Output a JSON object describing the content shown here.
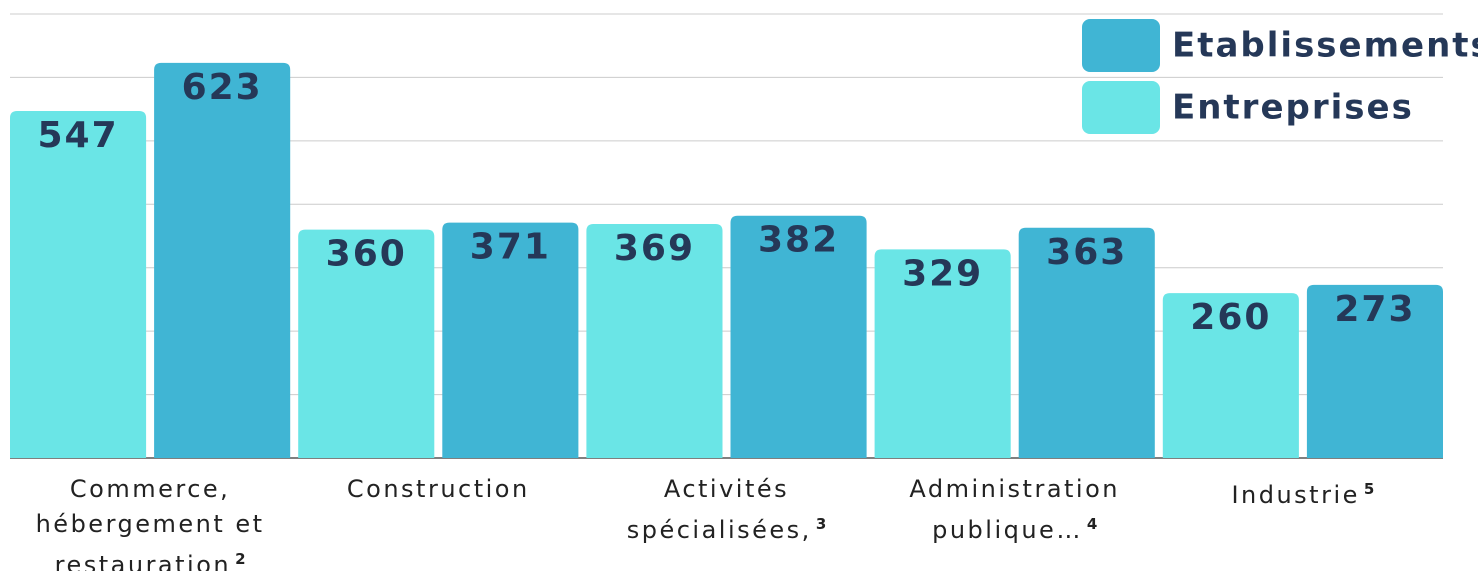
{
  "chart_data": {
    "type": "bar",
    "categories": [
      "Commerce, hébergement et restauration",
      "Construction",
      "Activités spécialisées,",
      "Administration publique…",
      "Industrie"
    ],
    "footnotes": [
      "2",
      null,
      "3",
      "4",
      "5"
    ],
    "series": [
      {
        "name": "Entreprises",
        "color": "#6ae5e6",
        "values": [
          547,
          360,
          369,
          329,
          260
        ]
      },
      {
        "name": "Etablissements",
        "color": "#40b5d4",
        "values": [
          623,
          371,
          382,
          363,
          273
        ]
      }
    ],
    "ylim": [
      0,
      700
    ],
    "yticks": [
      0,
      100,
      200,
      300,
      400,
      500,
      600,
      700
    ],
    "grid": true,
    "legend": "upper right"
  }
}
